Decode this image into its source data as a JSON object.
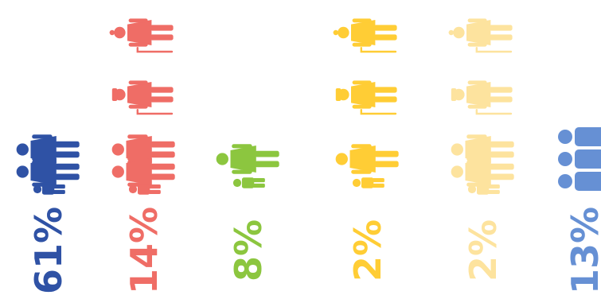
{
  "chart_data": {
    "type": "bar",
    "categories": [
      "two adults with a child",
      "adults with a child and seniors",
      "adult with a child",
      "adult with a child and seniors",
      "adults with a child and seniors",
      "three adults"
    ],
    "values": [
      61,
      14,
      8,
      2,
      2,
      13
    ],
    "labels": [
      "61%",
      "14%",
      "8%",
      "2%",
      "2%",
      "13%"
    ],
    "colors": [
      "#2f52a5",
      "#ef6d66",
      "#8cc63f",
      "#ffcd35",
      "#fde39e",
      "#6690d4"
    ],
    "icon_stacks": [
      [
        "family-couple-child-icon"
      ],
      [
        "family-couple-child-icon",
        "senior-man-with-cane-icon",
        "senior-woman-with-cane-icon"
      ],
      [
        "adult-with-child-icon"
      ],
      [
        "adult-with-child-icon",
        "senior-man-with-cane-icon",
        "senior-woman-with-cane-icon"
      ],
      [
        "family-couple-child-icon",
        "senior-man-with-cane-icon",
        "senior-woman-with-cane-icon"
      ],
      [
        "three-adults-icon"
      ]
    ],
    "orientation": "rotated-90-counterclockwise",
    "title": "",
    "xlabel": "",
    "ylabel": "",
    "grid": false,
    "legend": "none"
  }
}
